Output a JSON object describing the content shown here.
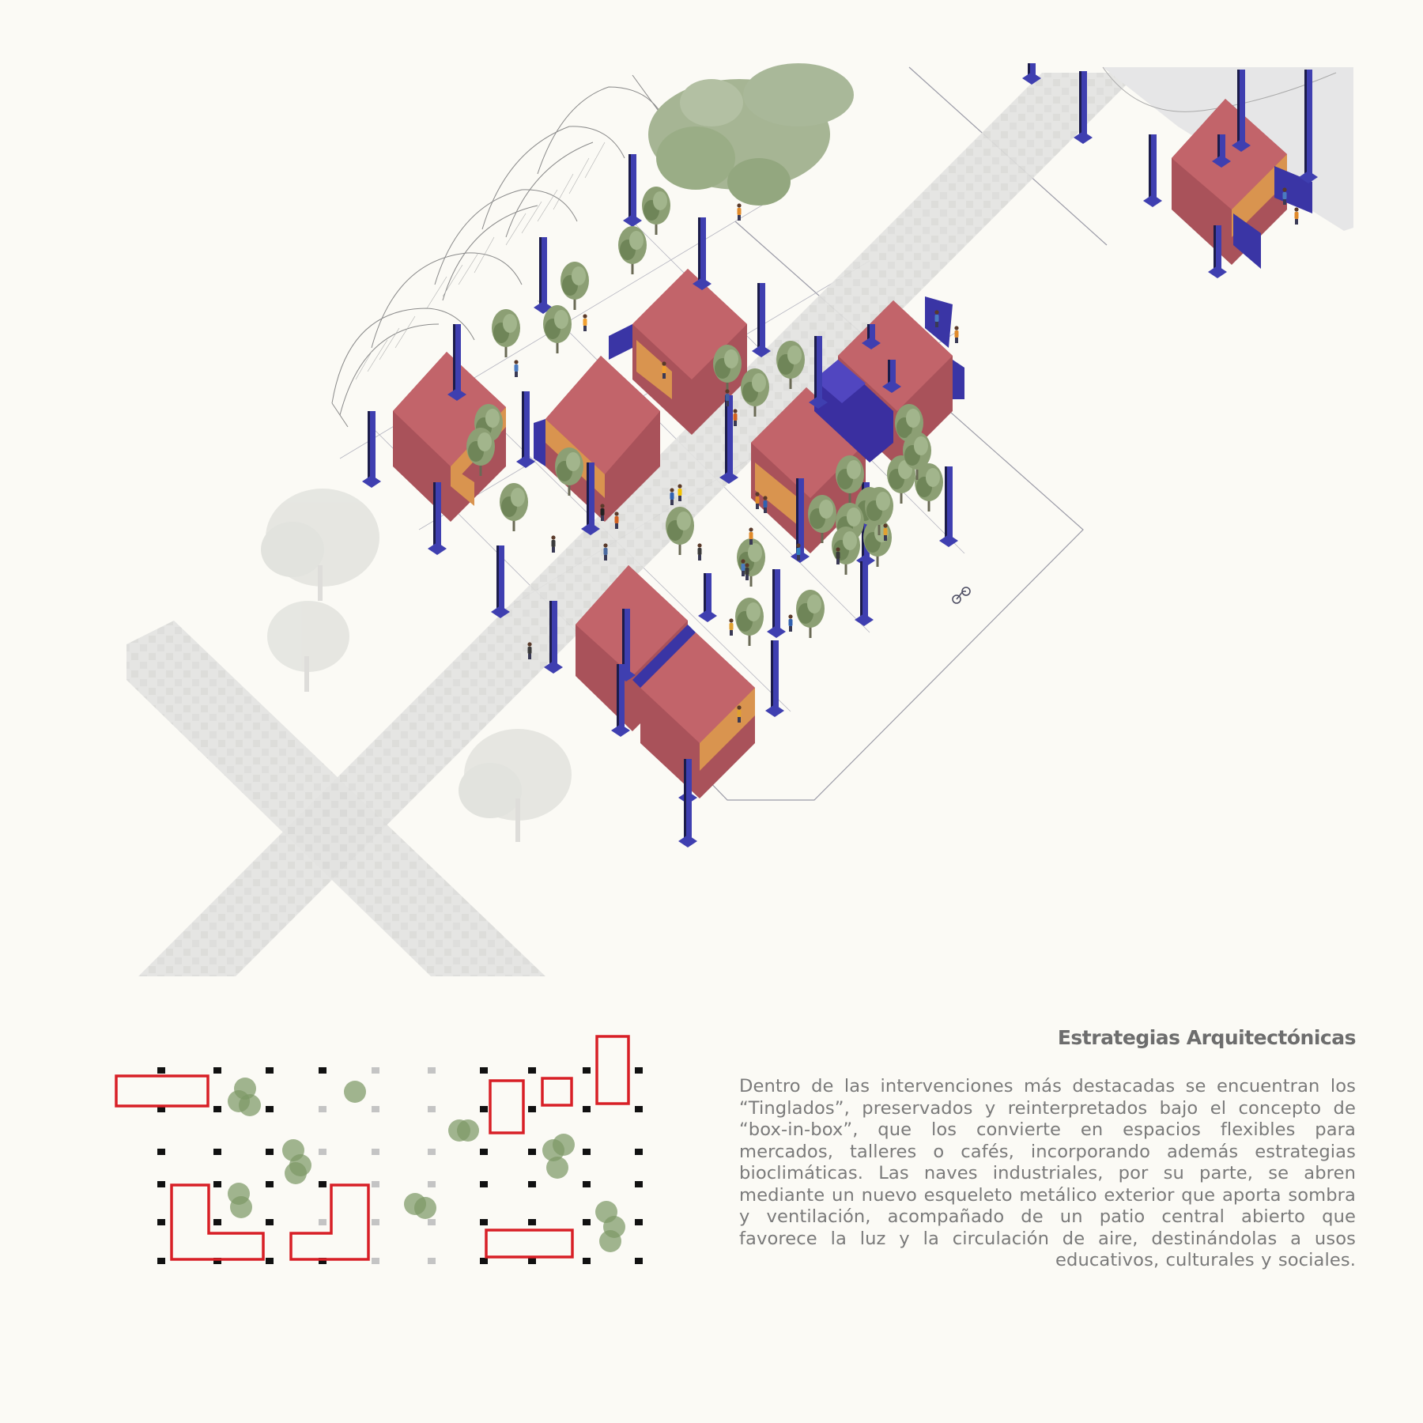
{
  "section": {
    "heading": "Estrategias Arquitectónicas",
    "body": "Dentro de las intervenciones más destacadas se encuentran los “Tinglados”, preservados y reinterpretados bajo el concepto de “box-in-box”, que los convierte en espacios flexibles para mercados, talleres o cafés, incorporando además estrategias bioclimáticas. Las naves industriales, por su parte, se abren mediante un nuevo esqueleto metálico exterior que aporta sombra y ventilación, acompañado de un patio central abierto que favorece la luz y la circulación de aire, destinándolas a usos educativos, culturales y sociales."
  },
  "colors": {
    "background": "#fbfaf5",
    "roof": "#c2646a",
    "roof_dark": "#a9525a",
    "wall_orange": "#d9944f",
    "steel_blue": "#3f3fb0",
    "steel_dark": "#1c1c4a",
    "paving": "#e4e4e2",
    "tree": "#8c9f74",
    "plan_red": "#d81f26",
    "plan_green": "#7d9866"
  },
  "icons": {
    "tree": "tree-icon",
    "person": "person-icon",
    "bicycle": "bicycle-icon"
  }
}
